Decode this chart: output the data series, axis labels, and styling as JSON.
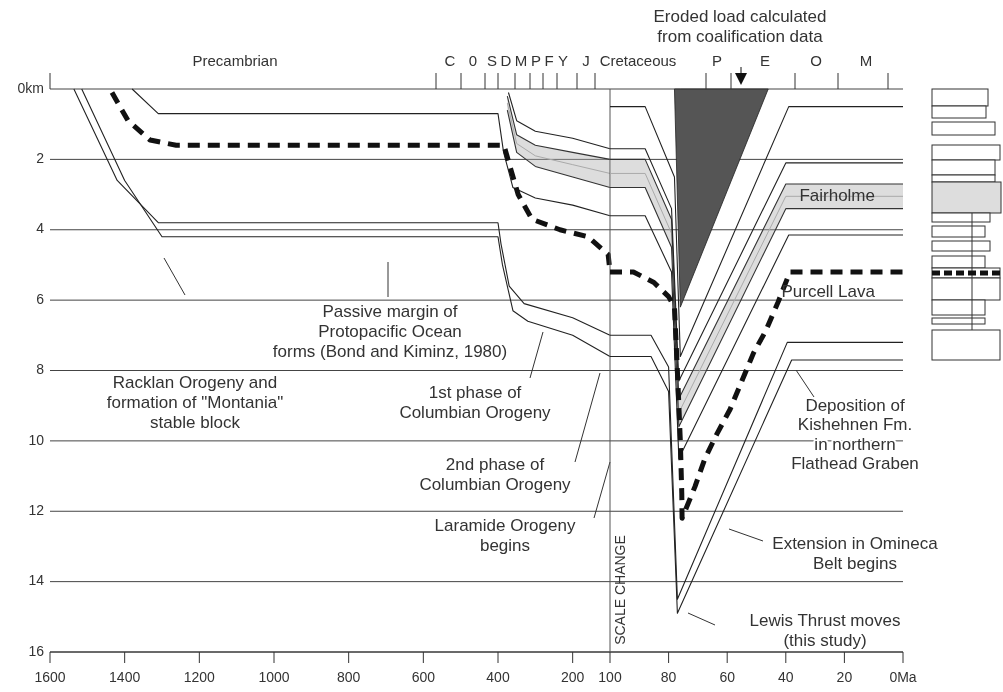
{
  "chart_data": [
    {
      "type": "line",
      "xlim": [
        1600,
        100
      ],
      "ylim": [
        16,
        0
      ],
      "grid": "y",
      "xticks": [
        1600,
        1400,
        1200,
        1000,
        800,
        600,
        400,
        200,
        100
      ],
      "yticks": [
        {
          "value": 0,
          "label": "0km"
        },
        2,
        4,
        6,
        8,
        10,
        12,
        14,
        16
      ],
      "series": [
        {
          "color": "#222222",
          "x": [
            1536,
            1420,
            1310,
            400,
            392,
            370,
            330,
            200,
            100
          ],
          "values": [
            0,
            2.6,
            3.8,
            3.8,
            4.4,
            5.6,
            6.1,
            6.5,
            7.0
          ]
        },
        {
          "color": "#222222",
          "x": [
            1515,
            1400,
            1300,
            400,
            388,
            360,
            320,
            200,
            100
          ],
          "values": [
            0,
            2.6,
            4.2,
            4.2,
            5.0,
            6.3,
            6.6,
            7.0,
            7.6
          ]
        },
        {
          "color": "#222222",
          "x": [
            1380,
            1310,
            400,
            385,
            360,
            300,
            200,
            100
          ],
          "values": [
            0,
            0.7,
            0.7,
            1.8,
            2.8,
            3.1,
            3.3,
            3.6
          ]
        },
        {
          "color": "#222222",
          "x": [
            372,
            350,
            300,
            200,
            100
          ],
          "values": [
            0.1,
            0.9,
            1.2,
            1.4,
            1.7
          ]
        },
        {
          "color": "#aaaaaa",
          "x": [
            375,
            350,
            300,
            200,
            100
          ],
          "values": [
            0.4,
            1.55,
            1.9,
            2.15,
            2.4
          ],
          "lower": [
            0.2,
            1.3,
            1.6,
            1.8,
            2.0
          ],
          "upper": [
            0.6,
            1.8,
            2.2,
            2.5,
            2.8
          ]
        },
        {
          "color": "#333333",
          "x": [
            375,
            350,
            300,
            200,
            100
          ],
          "values": [
            0.2,
            1.3,
            1.6,
            1.8,
            2.0
          ]
        },
        {
          "color": "#333333",
          "x": [
            375,
            350,
            300,
            200,
            100
          ],
          "values": [
            0.6,
            1.8,
            2.2,
            2.5,
            2.8
          ]
        },
        {
          "color": "#111111",
          "line_style": "dashed",
          "x": [
            1434,
            1391,
            1332,
            1262,
            384,
            368,
            346,
            309,
            234,
            159,
            105,
            100
          ],
          "values": [
            0.1,
            0.9,
            1.45,
            1.6,
            1.6,
            2.2,
            3.0,
            3.7,
            4.0,
            4.2,
            4.7,
            5.2
          ]
        }
      ],
      "annotations": [
        "Racklan Orogeny and\nformation of \"Montania\"\nstable block",
        "Passive margin of\nProtopacific Ocean\nforms (Bond and Kiminz, 1980)",
        "1st phase of\nColumbian Orogeny",
        "2nd phase of\nColumbian Orogeny",
        "Laramide Orogeny\nbegins",
        "Precambrian",
        "C",
        "0",
        "S",
        "D",
        "M",
        "P",
        "F",
        "Y",
        "J"
      ]
    },
    {
      "type": "line",
      "xlim": [
        100,
        0
      ],
      "ylim": [
        16,
        0
      ],
      "grid": "y",
      "tick_labels": "x",
      "xticks": [
        80,
        60,
        40,
        20,
        {
          "value": 0,
          "label": "0Ma"
        }
      ],
      "yticks": [
        0,
        2,
        4,
        6,
        8,
        10,
        12,
        14,
        16
      ],
      "series": [
        {
          "name": "Fairholme",
          "color": "#aaaaaa",
          "x": [
            100,
            88,
            79,
            76.5,
            40,
            0
          ],
          "values": [
            2.4,
            2.4,
            4.1,
            9.2,
            3.05,
            3.05
          ],
          "lower": [
            2.0,
            2.0,
            3.7,
            8.8,
            2.7,
            2.7
          ],
          "upper": [
            2.8,
            2.8,
            4.5,
            9.6,
            3.4,
            3.4
          ]
        },
        {
          "color": "#333333",
          "x": [
            100,
            88,
            79,
            76.5,
            40,
            0
          ],
          "values": [
            2.0,
            2.0,
            3.7,
            8.8,
            2.7,
            2.7
          ]
        },
        {
          "color": "#333333",
          "x": [
            100,
            88,
            79,
            76.5,
            40,
            0
          ],
          "values": [
            2.8,
            2.8,
            4.5,
            9.6,
            3.4,
            3.4
          ]
        },
        {
          "color": "#222222",
          "x": [
            100,
            86,
            80,
            77,
            39.5,
            0
          ],
          "values": [
            7.0,
            7.0,
            7.9,
            14.5,
            7.2,
            7.2
          ]
        },
        {
          "color": "#222222",
          "x": [
            100,
            86,
            80,
            77,
            38,
            0
          ],
          "values": [
            7.6,
            7.6,
            8.6,
            14.9,
            7.7,
            7.7
          ]
        },
        {
          "color": "#222222",
          "x": [
            100,
            88,
            79,
            76.5,
            39,
            0
          ],
          "values": [
            3.6,
            3.6,
            5.2,
            10.5,
            4.15,
            4.15
          ]
        },
        {
          "color": "#222222",
          "x": [
            100,
            88,
            79,
            76.5,
            40,
            0
          ],
          "values": [
            1.7,
            1.7,
            3.4,
            8.3,
            2.1,
            2.1
          ]
        },
        {
          "color": "#222222",
          "x": [
            100,
            88,
            78,
            76,
            39,
            0
          ],
          "values": [
            0.5,
            0.5,
            2.5,
            7.6,
            0.5,
            0.5
          ]
        },
        {
          "type": "area",
          "color": "#555555",
          "x": [
            78,
            76,
            46
          ],
          "values": [
            0,
            6.2,
            0
          ]
        },
        {
          "name": "Purcell Lava",
          "color": "#111111",
          "line_style": "dashed",
          "x": [
            100,
            92,
            85,
            80,
            78,
            77,
            76,
            75.5,
            75.4,
            71,
            67.6,
            63.5,
            59,
            55,
            51,
            47,
            42.6,
            38.6,
            0
          ],
          "values": [
            5.2,
            5.2,
            5.5,
            5.9,
            6.2,
            8,
            10,
            11.5,
            12.2,
            11.3,
            10.5,
            9.8,
            9.1,
            8.3,
            7.5,
            6.9,
            6.05,
            5.2,
            5.2
          ]
        }
      ],
      "annotations": [
        "SCALE CHANGE",
        "Eroded load calculated\nfrom coalification data",
        "Deposition of\nKishehnen Fm.\nin northern\nFlathead Graben",
        "Extension in Omineca\nBelt begins",
        "Lewis Thrust moves\n(this study)",
        "Cretaceous",
        "P",
        "E",
        "O",
        "M"
      ]
    }
  ]
}
